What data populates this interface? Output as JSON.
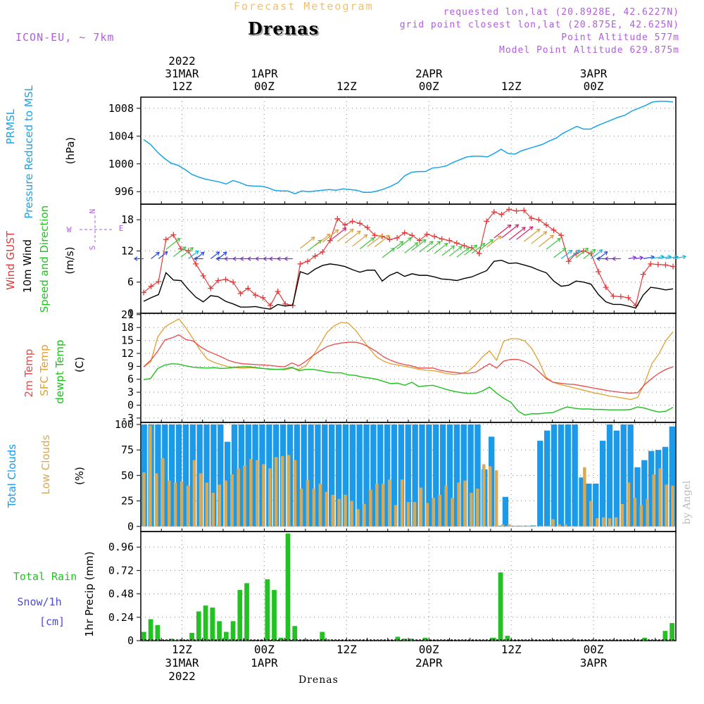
{
  "header": {
    "supertitle": "Forecast Meteogram",
    "title": "Drenas",
    "model": "ICON-EU, ~ 7km",
    "requested": "requested lon,lat (20.8928E, 42.6227N)",
    "grid": "grid point closest lon,lat (20.875E, 42.625N)",
    "point_alt": "Point Altitude 577m",
    "model_alt": "Model Point Altitude 629.875m",
    "credit": "by Angel",
    "footer": "Drenas"
  },
  "colors": {
    "pressure": "#1aa3e8",
    "gust": "#e23a3a",
    "wind": "#000000",
    "green": "#22c222",
    "temp": "#e84848",
    "sfc": "#e0a030",
    "dew": "#1ec01e",
    "total_clouds": "#1a9ae8",
    "low_clouds": "#d8aa58",
    "rain": "#22c222",
    "snow": "#4a4ae0",
    "purple": "#b25ce0"
  },
  "time_axis": {
    "hours": 78,
    "start": "31MAR 06Z",
    "top_year": "2022",
    "top_labels": [
      {
        "h": 6,
        "l1": "31MAR",
        "l2": "12Z"
      },
      {
        "h": 18,
        "l1": "1APR",
        "l2": "00Z"
      },
      {
        "h": 30,
        "l1": "",
        "l2": "12Z"
      },
      {
        "h": 42,
        "l1": "2APR",
        "l2": "00Z"
      },
      {
        "h": 54,
        "l1": "",
        "l2": "12Z"
      },
      {
        "h": 66,
        "l1": "3APR",
        "l2": "00Z"
      }
    ],
    "bottom_labels": [
      {
        "h": 6,
        "l1": "12Z",
        "l2": "31MAR",
        "l3": "2022"
      },
      {
        "h": 18,
        "l1": "00Z",
        "l2": "1APR",
        "l3": ""
      },
      {
        "h": 30,
        "l1": "12Z",
        "l2": "",
        "l3": ""
      },
      {
        "h": 42,
        "l1": "00Z",
        "l2": "2APR",
        "l3": ""
      },
      {
        "h": 54,
        "l1": "12Z",
        "l2": "",
        "l3": ""
      },
      {
        "h": 66,
        "l1": "00Z",
        "l2": "3APR",
        "l3": ""
      }
    ]
  },
  "panels": {
    "pressure": {
      "ylabel1": "PRMSL",
      "ylabel2": "Pressure Reduced to MSL",
      "unit": "(hPa)",
      "ylim": [
        994.2,
        1009.6
      ],
      "ticks": [
        996,
        1000,
        1004,
        1008
      ]
    },
    "wind": {
      "ylabel1": "Wind GUST",
      "ylabel2": "10m Wind",
      "ylabel3": "Speed and Direction",
      "unit": "(m/s)",
      "ylim": [
        0,
        21
      ],
      "ticks": [
        0,
        6,
        12,
        18
      ],
      "compass": {
        "n": "N",
        "s": "S",
        "e": "E",
        "w": "W"
      }
    },
    "temp": {
      "ylabel1": "2m Temp",
      "ylabel2": "SFC Temp",
      "ylabel3": "dewpt Temp",
      "unit": "(C)",
      "ylim": [
        -4,
        21.3
      ],
      "ticks": [
        -3,
        0,
        3,
        6,
        9,
        12,
        15,
        18,
        21
      ]
    },
    "clouds": {
      "ylabel1": "Total Clouds",
      "ylabel2": "Low Clouds",
      "unit": "(%)",
      "ylim": [
        -5,
        102
      ],
      "ticks": [
        0,
        25,
        50,
        75,
        100
      ]
    },
    "precip": {
      "ylabel1": "Total Rain",
      "ylabel2": "Snow/1h",
      "ylabel3": "[cm]",
      "unit": "1hr Precip (mm)",
      "ylim": [
        0,
        1.12
      ],
      "ticks": [
        "0",
        "0.24",
        "0.48",
        "0.72",
        "0.96"
      ]
    }
  },
  "chart_data": [
    {
      "type": "line",
      "title": "PRMSL Pressure Reduced to MSL",
      "ylabel": "hPa",
      "series": [
        {
          "name": "PRMSL",
          "values": [
            1003.5,
            1002.8,
            1001.7,
            1000.8,
            1000.1,
            999.8,
            999.2,
            998.5,
            998.1,
            997.8,
            997.6,
            997.4,
            997.1,
            997.6,
            997.3,
            996.9,
            996.8,
            996.8,
            996.6,
            996.2,
            996.1,
            996.1,
            995.7,
            996.1,
            996.0,
            996.1,
            996.2,
            996.3,
            996.2,
            996.4,
            996.3,
            996.2,
            995.9,
            995.9,
            996.1,
            996.4,
            996.8,
            997.3,
            998.3,
            998.8,
            998.9,
            998.9,
            999.4,
            999.5,
            999.7,
            1000.2,
            1000.6,
            1001.0,
            1001.1,
            1001.1,
            1001.0,
            1001.5,
            1002.1,
            1001.5,
            1001.4,
            1001.9,
            1002.2,
            1002.5,
            1002.8,
            1003.3,
            1003.7,
            1004.4,
            1004.9,
            1005.4,
            1005.0,
            1005.0,
            1005.5,
            1005.9,
            1006.3,
            1006.7,
            1007.0,
            1007.6,
            1008.0,
            1008.4,
            1008.9,
            1009.0,
            1009.0,
            1008.9
          ]
        }
      ]
    },
    {
      "type": "line",
      "title": "Wind GUST / 10m Wind Speed and Direction",
      "ylabel": "m/s",
      "series": [
        {
          "name": "Wind GUST",
          "values": [
            4.0,
            5.2,
            6.1,
            14.2,
            15.1,
            12.4,
            12.0,
            9.5,
            7.2,
            4.8,
            6.3,
            6.5,
            6.0,
            3.8,
            4.8,
            3.5,
            3.0,
            1.5,
            4.2,
            1.8,
            1.5,
            9.5,
            10.0,
            11.0,
            11.8,
            14.0,
            18.2,
            17.0,
            17.7,
            17.3,
            16.5,
            15.0,
            14.8,
            14.2,
            14.5,
            15.5,
            15.0,
            14.0,
            15.2,
            14.8,
            14.3,
            14.0,
            13.5,
            13.0,
            12.6,
            11.5,
            17.7,
            19.5,
            19.0,
            20.0,
            19.7,
            19.8,
            18.3,
            18.0,
            17.0,
            16.0,
            15.0,
            10.0,
            11.5,
            12.0,
            11.5,
            8.0,
            5.0,
            3.3,
            3.2,
            3.0,
            1.5,
            7.5,
            9.5,
            9.4,
            9.3,
            9.0
          ]
        },
        {
          "name": "10m Wind",
          "values": [
            2.3,
            3.0,
            3.6,
            7.8,
            6.4,
            6.3,
            4.6,
            3.1,
            2.2,
            3.4,
            3.2,
            2.3,
            1.8,
            1.2,
            1.2,
            1.3,
            1.0,
            0.8,
            1.7,
            1.4,
            1.6,
            8.0,
            7.5,
            8.5,
            9.2,
            9.5,
            9.3,
            9.0,
            8.4,
            7.9,
            8.3,
            8.3,
            6.2,
            7.3,
            7.9,
            7.1,
            7.6,
            7.3,
            7.3,
            7.0,
            6.6,
            6.5,
            6.3,
            6.7,
            7.0,
            7.6,
            8.2,
            10.0,
            10.2,
            9.6,
            9.7,
            9.3,
            8.9,
            8.3,
            7.8,
            6.2,
            5.2,
            5.4,
            6.2,
            6.0,
            5.6,
            3.6,
            2.2,
            1.7,
            1.7,
            1.4,
            1.0,
            3.5,
            5.0,
            4.8,
            4.5,
            4.7
          ]
        }
      ]
    },
    {
      "type": "line",
      "title": "2m Temp / SFC Temp / dewpt Temp",
      "ylabel": "C",
      "series": [
        {
          "name": "2m Temp",
          "values": [
            8.9,
            10.4,
            12.5,
            15.1,
            15.6,
            16.3,
            15.2,
            14.9,
            13.6,
            12.6,
            11.9,
            11.2,
            10.4,
            9.9,
            9.6,
            9.5,
            9.4,
            9.3,
            9.2,
            9.0,
            8.9,
            9.8,
            9.1,
            10.2,
            11.5,
            12.6,
            13.6,
            14.1,
            14.4,
            14.6,
            14.6,
            14.2,
            13.4,
            12.4,
            11.2,
            10.4,
            9.8,
            9.4,
            9.1,
            8.6,
            8.6,
            8.6,
            8.1,
            7.8,
            7.6,
            7.4,
            7.4,
            7.6,
            8.6,
            9.6,
            8.6,
            10.2,
            10.6,
            10.6,
            10.1,
            9.2,
            7.8,
            6.2,
            5.3,
            5.1,
            4.9,
            4.8,
            4.5,
            4.2,
            3.9,
            3.6,
            3.3,
            3.1,
            2.9,
            2.8,
            2.9,
            4.8,
            6.2,
            7.4,
            8.3,
            8.9
          ]
        },
        {
          "name": "SFC Temp",
          "values": [
            8.9,
            10.0,
            15.8,
            18.1,
            19.1,
            20.0,
            17.9,
            15.4,
            12.8,
            10.7,
            9.9,
            9.4,
            8.9,
            8.7,
            8.6,
            8.7,
            8.6,
            8.5,
            8.4,
            8.3,
            8.2,
            8.6,
            8.3,
            9.2,
            11.5,
            14.1,
            16.9,
            18.4,
            19.2,
            19.0,
            17.4,
            15.2,
            13.1,
            11.2,
            10.2,
            9.6,
            9.3,
            9.0,
            8.7,
            8.3,
            8.1,
            8.0,
            7.7,
            7.3,
            7.1,
            7.3,
            7.9,
            9.3,
            11.2,
            12.6,
            10.4,
            14.8,
            15.4,
            15.4,
            14.9,
            13.1,
            10.2,
            6.5,
            5.3,
            4.8,
            4.4,
            4.0,
            3.6,
            3.2,
            2.8,
            2.5,
            2.1,
            1.9,
            1.6,
            1.3,
            1.8,
            5.2,
            9.6,
            11.9,
            15.0,
            17.0
          ]
        },
        {
          "name": "dewpt Temp",
          "values": [
            5.9,
            6.2,
            8.5,
            9.3,
            9.6,
            9.5,
            9.1,
            8.8,
            8.7,
            8.6,
            8.7,
            8.5,
            8.6,
            8.8,
            8.9,
            8.9,
            8.7,
            8.5,
            8.3,
            8.3,
            8.4,
            8.8,
            8.0,
            8.3,
            8.3,
            8.0,
            7.7,
            7.5,
            7.5,
            7.0,
            6.9,
            6.5,
            6.3,
            6.0,
            5.5,
            5.0,
            5.1,
            4.6,
            5.3,
            4.3,
            4.5,
            4.6,
            4.1,
            3.6,
            3.2,
            2.9,
            2.7,
            2.7,
            3.3,
            4.2,
            2.8,
            1.6,
            0.7,
            -1.3,
            -2.3,
            -2.0,
            -2.0,
            -1.8,
            -1.7,
            -1.0,
            -0.4,
            -0.7,
            -0.9,
            -0.9,
            -1.0,
            -1.0,
            -1.1,
            -1.1,
            -1.1,
            -1.0,
            -0.4,
            -0.7,
            -1.2,
            -1.6,
            -1.4,
            -0.5
          ]
        }
      ]
    },
    {
      "type": "bar",
      "title": "Total Clouds / Low Clouds",
      "ylabel": "%",
      "series": [
        {
          "name": "Total Clouds",
          "values": [
            100,
            100,
            100,
            100,
            100,
            100,
            100,
            100,
            100,
            100,
            100,
            100,
            83,
            100,
            100,
            100,
            100,
            100,
            100,
            100,
            100,
            100,
            100,
            100,
            100,
            100,
            100,
            100,
            100,
            100,
            100,
            100,
            100,
            100,
            100,
            100,
            100,
            100,
            100,
            100,
            100,
            100,
            100,
            100,
            100,
            100,
            100,
            100,
            100,
            56,
            88,
            0,
            29,
            0,
            0,
            0,
            1,
            84,
            94,
            100,
            100,
            100,
            100,
            48,
            42,
            42,
            84,
            100,
            94,
            100,
            100,
            58,
            65,
            74,
            75,
            78,
            98
          ]
        },
        {
          "name": "Low Clouds",
          "values": [
            53,
            99,
            52,
            67,
            45,
            43,
            44,
            40,
            65,
            52,
            43,
            33,
            41,
            45,
            51,
            57,
            60,
            66,
            65,
            61,
            57,
            68,
            69,
            70,
            65,
            37,
            46,
            37,
            42,
            34,
            31,
            27,
            31,
            25,
            17,
            22,
            36,
            42,
            42,
            46,
            21,
            46,
            24,
            24,
            38,
            23,
            28,
            31,
            40,
            28,
            43,
            45,
            33,
            37,
            61,
            59,
            55,
            2,
            2,
            0,
            0,
            0,
            0,
            0,
            0,
            7,
            2,
            2,
            0,
            0,
            58,
            25,
            8,
            9,
            8,
            9,
            22,
            43,
            28,
            21,
            27,
            51,
            57,
            41,
            40
          ]
        }
      ]
    },
    {
      "type": "bar",
      "title": "Total Rain / Snow 1h",
      "ylabel": "1hr Precip (mm)",
      "series": [
        {
          "name": "Total Rain",
          "values": [
            0.09,
            0.22,
            0.16,
            0.0,
            0.02,
            0.01,
            0.0,
            0.08,
            0.3,
            0.36,
            0.34,
            0.2,
            0.09,
            0.2,
            0.52,
            0.59,
            0.0,
            0.0,
            0.63,
            0.52,
            0.03,
            1.1,
            0.15,
            0.0,
            0.0,
            0.0,
            0.09,
            0.01,
            0.0,
            0.0,
            0.0,
            0.0,
            0.0,
            0.0,
            0.0,
            0.0,
            0.0,
            0.04,
            0.02,
            0.02,
            0.0,
            0.03,
            0.0,
            0.0,
            0.0,
            0.0,
            0.0,
            0.0,
            0.0,
            0.0,
            0.0,
            0.03,
            0.7,
            0.05,
            0.0,
            0.0,
            0.0,
            0.0,
            0.0,
            0.0,
            0.0,
            0.0,
            0.0,
            0.0,
            0.0,
            0.0,
            0.0,
            0.0,
            0.0,
            0.0,
            0.0,
            0.0,
            0.0,
            0.03,
            0.0,
            0.0,
            0.1,
            0.18
          ]
        },
        {
          "name": "Snow 1h",
          "values": []
        }
      ]
    }
  ]
}
